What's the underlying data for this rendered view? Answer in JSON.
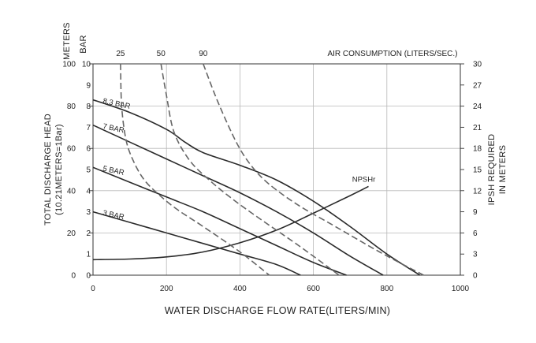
{
  "chart_data": {
    "type": "line",
    "title": "",
    "xlabel": "WATER DISCHARGE FLOW RATE(LITERS/MIN)",
    "xlim": [
      0,
      1000
    ],
    "x_ticks": [
      "0",
      "200",
      "400",
      "600",
      "800",
      "1000"
    ],
    "left_axis_units": [
      "METERS",
      "BAR"
    ],
    "ylabel_left": "TOTAL DISCHARGE HEAD",
    "ylabel_left_sub": "(10.21METERS=1Bar)",
    "ylim_meters": [
      0,
      100
    ],
    "y_ticks_meters": [
      "0",
      "20",
      "40",
      "60",
      "80",
      "100"
    ],
    "y_ticks_bar": [
      "0",
      "1",
      "2",
      "3",
      "4",
      "5",
      "6",
      "7",
      "8",
      "9",
      "10"
    ],
    "ylabel_right": "IPSH REQUIRED",
    "ylabel_right_sub": "IN METERS",
    "ylim_right": [
      0,
      30
    ],
    "y_ticks_right": [
      "0",
      "3",
      "6",
      "9",
      "12",
      "15",
      "18",
      "21",
      "24",
      "27",
      "30"
    ],
    "top_label": "AIR CONSUMPTION (LITERS/SEC.)",
    "grid": true,
    "series": [
      {
        "name": "8.3 BAR",
        "kind": "air-pressure",
        "x": [
          0,
          100,
          200,
          250,
          300,
          400,
          500,
          600,
          700,
          800,
          890
        ],
        "y": [
          83,
          77,
          69,
          63,
          58,
          52,
          45,
          35,
          23,
          10,
          0
        ]
      },
      {
        "name": "7 BAR",
        "kind": "air-pressure",
        "x": [
          0,
          100,
          200,
          300,
          400,
          500,
          600,
          700,
          790
        ],
        "y": [
          71,
          63,
          55,
          47,
          39,
          30,
          20,
          9,
          0
        ]
      },
      {
        "name": "5 BAR",
        "kind": "air-pressure",
        "x": [
          0,
          100,
          200,
          300,
          400,
          500,
          600,
          690
        ],
        "y": [
          51,
          44,
          37,
          30,
          22,
          14,
          6,
          0
        ]
      },
      {
        "name": "3 BAR",
        "kind": "air-pressure",
        "x": [
          0,
          100,
          200,
          300,
          400,
          500,
          565
        ],
        "y": [
          30,
          25,
          20,
          15,
          10,
          5,
          0
        ]
      },
      {
        "name": "NPSHr",
        "kind": "npsh",
        "axis": "right",
        "x": [
          0,
          100,
          200,
          300,
          400,
          500,
          600,
          700,
          750
        ],
        "y": [
          2.2,
          2.3,
          2.6,
          3.3,
          4.6,
          6.4,
          8.8,
          11.3,
          12.6
        ]
      },
      {
        "name": "25",
        "kind": "air-consumption",
        "x": [
          75,
          78,
          90,
          110,
          140,
          180,
          230,
          300,
          400,
          480
        ],
        "y": [
          100,
          80,
          64,
          54,
          45,
          38,
          31,
          23,
          11,
          0
        ]
      },
      {
        "name": "50",
        "kind": "air-consumption",
        "x": [
          185,
          200,
          220,
          260,
          310,
          380,
          460,
          560,
          670
        ],
        "y": [
          100,
          85,
          68,
          55,
          46,
          36,
          26,
          14,
          0
        ]
      },
      {
        "name": "90",
        "kind": "air-consumption",
        "x": [
          300,
          340,
          390,
          430,
          480,
          560,
          660,
          780,
          900
        ],
        "y": [
          100,
          82,
          63,
          52,
          43,
          33,
          23,
          11,
          0
        ]
      }
    ]
  }
}
